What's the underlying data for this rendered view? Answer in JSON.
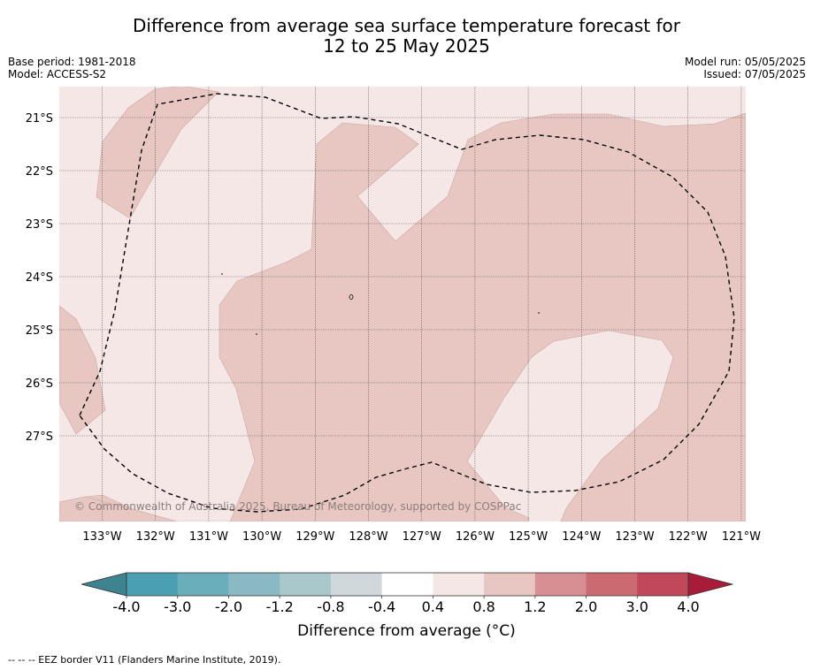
{
  "title_line1": "Difference from average sea surface temperature forecast for",
  "title_line2": "12 to 25 May 2025",
  "base_period": "Base period: 1981-2018",
  "model": "Model: ACCESS-S2",
  "model_run": "Model run: 05/05/2025",
  "issued": "Issued: 07/05/2025",
  "copyright": "© Commonwealth of Australia 2025, Bureau of Meteorology, supported by COSPPac",
  "lat_labels": [
    "21°S",
    "22°S",
    "23°S",
    "24°S",
    "25°S",
    "26°S",
    "27°S"
  ],
  "lon_labels": [
    "133°W",
    "132°W",
    "131°W",
    "130°W",
    "129°W",
    "128°W",
    "127°W",
    "126°W",
    "125°W",
    "124°W",
    "123°W",
    "122°W",
    "121°W"
  ],
  "colorbar": {
    "ticks": [
      "-4.0",
      "-3.0",
      "-2.0",
      "-1.2",
      "-0.8",
      "-0.4",
      "0.4",
      "0.8",
      "1.2",
      "2.0",
      "3.0",
      "4.0"
    ],
    "label": "Difference from average (°C)",
    "colors": [
      "#4aa0b2",
      "#6baebb",
      "#8ab8c3",
      "#a9c8cc",
      "#cfd9dc",
      "#ffffff",
      "#f5e7e6",
      "#e8c7c3",
      "#d88f94",
      "#cc6a72",
      "#c0485a"
    ],
    "low_arrow_color": "#3e8390",
    "high_arrow_color": "#a81c3a",
    "field_colors": {
      "0.4_to_0.8": "#f5e7e6",
      "0.8_to_1.2": "#e8c7c3"
    }
  },
  "footer": "--  --  -- EEZ border V11 (Flanders Marine Institute, 2019)."
}
